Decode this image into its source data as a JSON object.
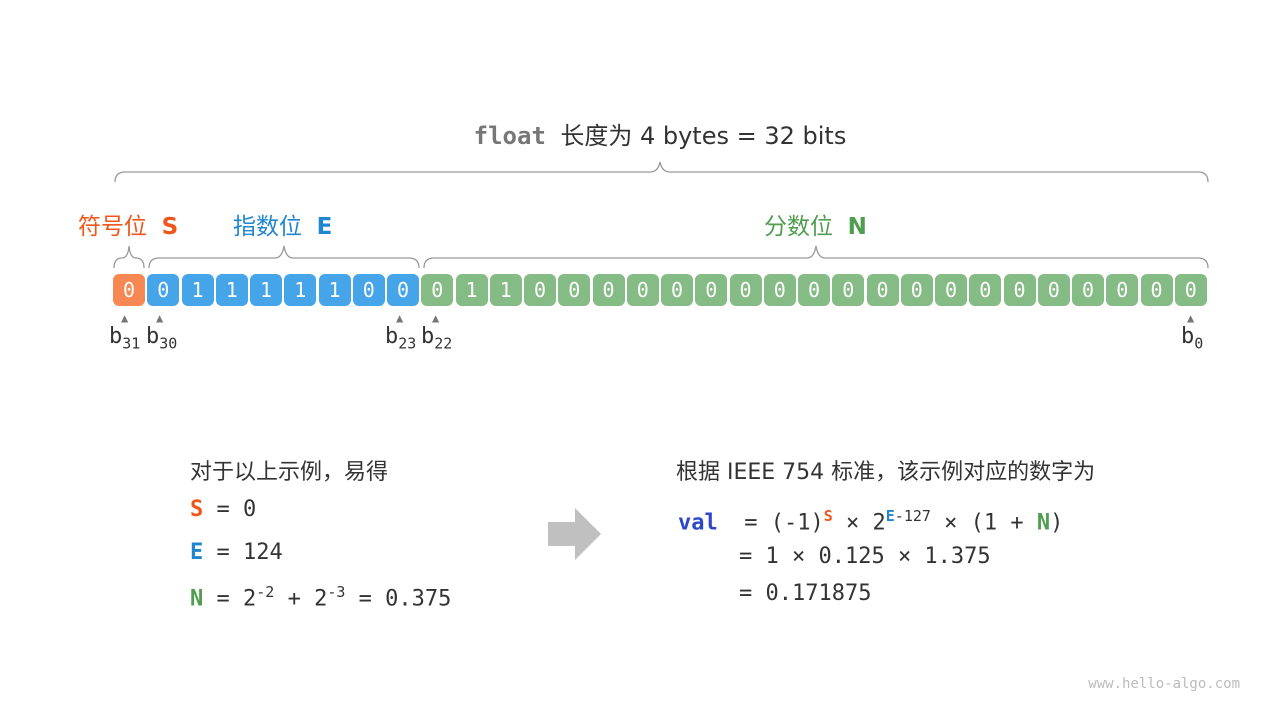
{
  "title": {
    "keyword": "float",
    "text": "长度为 4 bytes = 32 bits"
  },
  "labels": {
    "sign": "符号位",
    "sign_sym": "S",
    "exp": "指数位",
    "exp_sym": "E",
    "frac": "分数位",
    "frac_sym": "N"
  },
  "bits": {
    "sign": [
      "0"
    ],
    "exponent": [
      "0",
      "1",
      "1",
      "1",
      "1",
      "1",
      "0",
      "0"
    ],
    "fraction": [
      "0",
      "1",
      "1",
      "0",
      "0",
      "0",
      "0",
      "0",
      "0",
      "0",
      "0",
      "0",
      "0",
      "0",
      "0",
      "0",
      "0",
      "0",
      "0",
      "0",
      "0",
      "0",
      "0"
    ]
  },
  "bit_labels": {
    "b31": "31",
    "b30": "30",
    "b23": "23",
    "b22": "22",
    "b0": "0",
    "b": "b"
  },
  "left": {
    "intro": "对于以上示例，易得",
    "s_line": "= 0",
    "e_line": "= 124",
    "n_eq": "=",
    "n_base1": "2",
    "n_exp1": "-2",
    "n_plus": "+",
    "n_base2": "2",
    "n_exp2": "-3",
    "n_result": "= 0.375"
  },
  "right": {
    "intro": "根据 IEEE 754 标准，该示例对应的数字为",
    "val": "val",
    "l1a": "= (-1)",
    "l1b": "× 2",
    "l1c": "-127",
    "l1d": "× (1 +",
    "l1e": ")",
    "l2": "= 1 × 0.125 × 1.375",
    "l3": "= 0.171875"
  },
  "watermark": "www.hello-algo.com",
  "colors": {
    "sign": "#f78853",
    "exponent": "#46a4e8",
    "fraction": "#85bb84",
    "sign_text": "#f0561c",
    "exp_text": "#1f86d0",
    "frac_text": "#4f9d4f",
    "val_text": "#2e47c9",
    "arrow": "#c0c0c0"
  }
}
